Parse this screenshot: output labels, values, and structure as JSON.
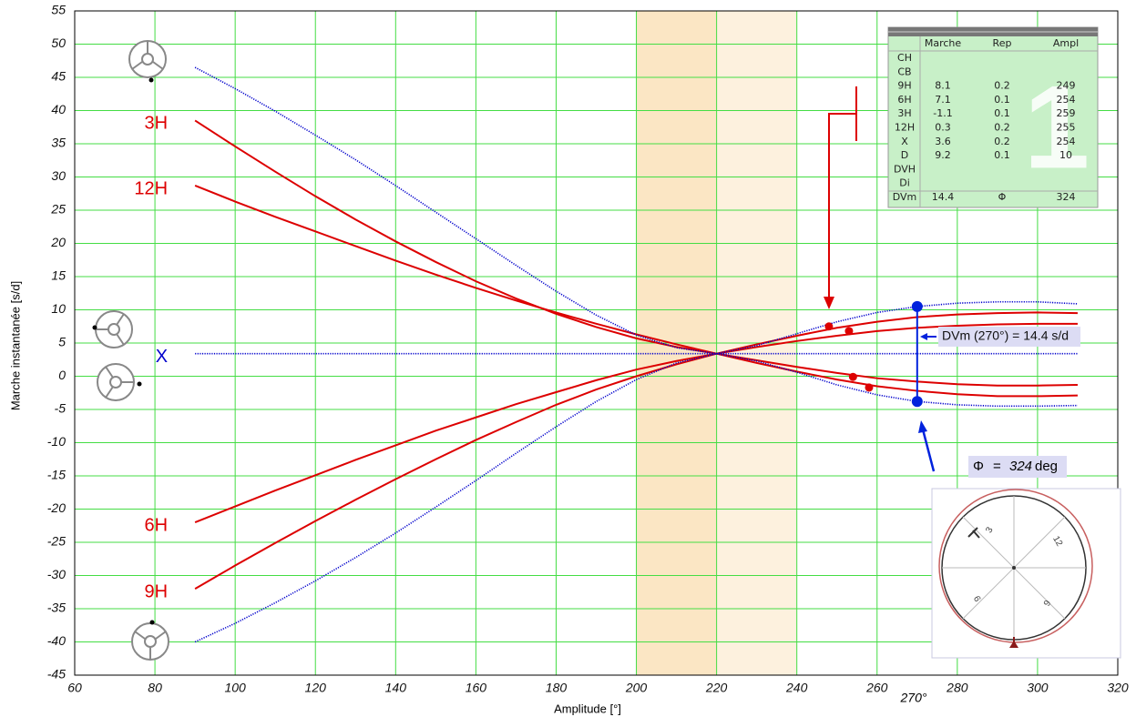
{
  "chart_data": {
    "type": "line",
    "x_label": "Amplitude [°]",
    "y_label": "Marche instantanée [s/d]",
    "xlim": [
      60,
      320
    ],
    "ylim": [
      -45,
      55
    ],
    "xticks": [
      60,
      80,
      100,
      120,
      140,
      160,
      180,
      200,
      220,
      240,
      260,
      280,
      300,
      320
    ],
    "yticks": [
      -45,
      -40,
      -35,
      -30,
      -25,
      -20,
      -15,
      -10,
      -5,
      0,
      5,
      10,
      15,
      20,
      25,
      30,
      35,
      40,
      45,
      50,
      55
    ],
    "grid": true,
    "grid_color": "#44dd44",
    "bands": [
      {
        "from": 200,
        "to": 220,
        "color": "#fbe6c4"
      },
      {
        "from": 220,
        "to": 240,
        "color": "#fdf1de"
      }
    ],
    "x": [
      90,
      100,
      110,
      120,
      130,
      140,
      150,
      160,
      170,
      180,
      190,
      200,
      210,
      220,
      230,
      240,
      250,
      260,
      270,
      280,
      290,
      300,
      310
    ],
    "series": [
      {
        "name": "3H",
        "color": "#dd0000",
        "style": "solid",
        "values": [
          38.5,
          34.6,
          30.8,
          27.1,
          23.6,
          20.3,
          17.2,
          14.3,
          11.7,
          9.4,
          7.4,
          5.7,
          4.4,
          3.4,
          2.4,
          1.4,
          0.5,
          -0.3,
          -0.8,
          -1.2,
          -1.4,
          -1.4,
          -1.3
        ]
      },
      {
        "name": "12H",
        "color": "#dd0000",
        "style": "solid",
        "values": [
          28.7,
          26.3,
          24.0,
          21.8,
          19.6,
          17.4,
          15.3,
          13.3,
          11.4,
          9.6,
          7.9,
          6.3,
          4.8,
          3.4,
          2.0,
          0.7,
          -0.5,
          -1.5,
          -2.2,
          -2.7,
          -3.0,
          -3.0,
          -2.9
        ]
      },
      {
        "name": "6H",
        "color": "#dd0000",
        "style": "solid",
        "values": [
          -22,
          -19.6,
          -17.2,
          -14.9,
          -12.6,
          -10.4,
          -8.2,
          -6.2,
          -4.2,
          -2.4,
          -0.6,
          1.0,
          2.3,
          3.4,
          4.4,
          5.3,
          6.1,
          6.8,
          7.3,
          7.6,
          7.8,
          7.9,
          7.9
        ]
      },
      {
        "name": "9H",
        "color": "#dd0000",
        "style": "solid",
        "values": [
          -32,
          -28.5,
          -25.1,
          -21.8,
          -18.6,
          -15.5,
          -12.5,
          -9.6,
          -6.9,
          -4.3,
          -2.0,
          0,
          1.8,
          3.4,
          4.8,
          6.1,
          7.3,
          8.2,
          8.9,
          9.3,
          9.5,
          9.6,
          9.5
        ]
      },
      {
        "color": "#0000cc",
        "style": "dotted",
        "values": [
          46.5,
          43.3,
          39.9,
          36.3,
          32.6,
          28.7,
          24.7,
          20.7,
          16.7,
          12.8,
          9.2,
          6.2,
          4.3,
          3.4,
          2.3,
          0.6,
          -1.3,
          -2.8,
          -3.8,
          -4.3,
          -4.5,
          -4.5,
          -4.4
        ]
      },
      {
        "color": "#0000cc",
        "style": "dotted",
        "values": [
          -40,
          -37.2,
          -34.1,
          -30.8,
          -27.3,
          -23.6,
          -19.7,
          -15.7,
          -11.6,
          -7.6,
          -3.8,
          -0.5,
          2.0,
          3.4,
          4.6,
          6.4,
          8.2,
          9.6,
          10.5,
          11.0,
          11.2,
          11.2,
          10.9
        ]
      },
      {
        "name": "X",
        "color": "#0000cc",
        "style": "dotted",
        "x": [
          90,
          310
        ],
        "values": [
          3.4,
          3.4
        ]
      }
    ],
    "points": [
      {
        "color": "#dd0000",
        "x": [
          248,
          253,
          254,
          258
        ],
        "values": [
          7.5,
          6.8,
          -0.1,
          -1.7
        ]
      },
      {
        "color": "#0022dd",
        "x": [
          270,
          270
        ],
        "values": [
          10.5,
          -3.8
        ]
      }
    ],
    "annotations": {
      "dvm": "DVm (270°) = 14.4 s/d",
      "phi_symbol": "Φ",
      "phi_eq": "=",
      "phi_value": "324",
      "phi_unit": "deg",
      "angle": "270°"
    }
  },
  "table": {
    "headers": [
      "Marche",
      "Rep",
      "Ampl"
    ],
    "rows": [
      [
        "CH"
      ],
      [
        "CB"
      ],
      [
        "9H",
        "8.1",
        "0.2",
        "249"
      ],
      [
        "6H",
        "7.1",
        "0.1",
        "254"
      ],
      [
        "3H",
        "-1.1",
        "0.1",
        "259"
      ],
      [
        "12H",
        "0.3",
        "0.2",
        "255"
      ],
      [
        "X",
        "3.6",
        "0.2",
        "254"
      ],
      [
        "D",
        "9.2",
        "0.1",
        "10"
      ],
      [
        "DVH"
      ],
      [
        "Di"
      ],
      [
        "DVm",
        "14.4",
        "Φ",
        "324"
      ]
    ],
    "watermark": "1"
  },
  "dial": {
    "labels": [
      "3",
      "12",
      "6",
      "9"
    ]
  }
}
